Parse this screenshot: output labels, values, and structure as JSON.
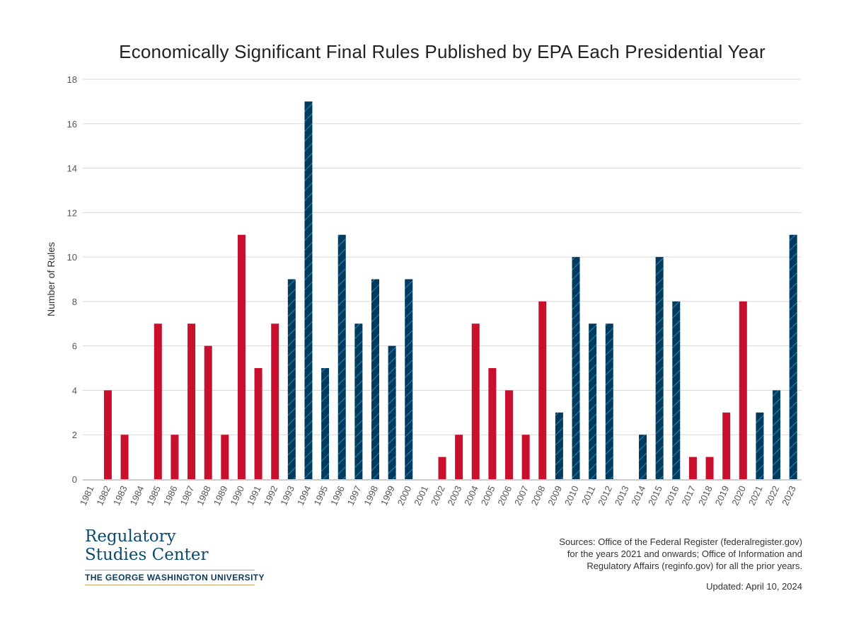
{
  "chart_data": {
    "type": "bar",
    "title": "Economically Significant Final Rules Published by EPA Each Presidential Year",
    "xlabel": "",
    "ylabel": "Number of Rules",
    "ylim": [
      0,
      18
    ],
    "yticks": [
      0,
      2,
      4,
      6,
      8,
      10,
      12,
      14,
      16,
      18
    ],
    "grid": true,
    "categories": [
      "1981",
      "1982",
      "1983",
      "1984",
      "1985",
      "1986",
      "1987",
      "1988",
      "1989",
      "1990",
      "1991",
      "1992",
      "1993",
      "1994",
      "1995",
      "1996",
      "1997",
      "1998",
      "1999",
      "2000",
      "2001",
      "2002",
      "2003",
      "2004",
      "2005",
      "2006",
      "2007",
      "2008",
      "2009",
      "2010",
      "2011",
      "2012",
      "2013",
      "2014",
      "2015",
      "2016",
      "2017",
      "2018",
      "2019",
      "2020",
      "2021",
      "2022",
      "2023"
    ],
    "values": [
      0,
      4,
      2,
      0,
      7,
      2,
      7,
      6,
      2,
      11,
      5,
      7,
      9,
      17,
      5,
      11,
      7,
      9,
      6,
      9,
      0,
      1,
      2,
      7,
      5,
      4,
      2,
      8,
      3,
      10,
      7,
      7,
      0,
      2,
      10,
      8,
      1,
      1,
      3,
      8,
      3,
      4,
      11
    ],
    "party": [
      "R",
      "R",
      "R",
      "R",
      "R",
      "R",
      "R",
      "R",
      "R",
      "R",
      "R",
      "R",
      "D",
      "D",
      "D",
      "D",
      "D",
      "D",
      "D",
      "D",
      "R",
      "R",
      "R",
      "R",
      "R",
      "R",
      "R",
      "R",
      "D",
      "D",
      "D",
      "D",
      "D",
      "D",
      "D",
      "D",
      "R",
      "R",
      "R",
      "R",
      "D",
      "D",
      "D"
    ],
    "colors": {
      "R": "#c8102e",
      "D": "#003a5d",
      "hatch": "#1f7fb3",
      "grid": "#d9d9d9",
      "axis": "#cccccc"
    }
  },
  "logo": {
    "line1": "Regulatory",
    "line2": "Studies Center",
    "university": "THE GEORGE WASHINGTON UNIVERSITY"
  },
  "sources": {
    "line1": "Sources: Office of the Federal Register (federalregister.gov)",
    "line2": "for the years 2021 and onwards; Office of Information and",
    "line3": "Regulatory Affairs (reginfo.gov) for all the prior years."
  },
  "updated": "Updated: April 10, 2024"
}
